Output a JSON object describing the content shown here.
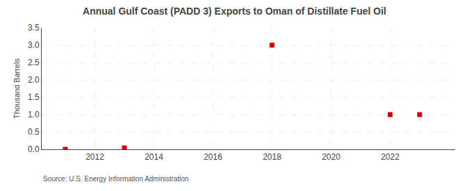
{
  "chart_data": {
    "type": "scatter",
    "title": "Annual Gulf Coast (PADD 3) Exports to Oman of Distillate Fuel Oil",
    "y_label": "Thousand Barrels",
    "annotations": [
      "Source: U.S. Energy Information Administration"
    ],
    "x": [
      2011,
      2013,
      2018,
      2022,
      2023
    ],
    "values": [
      0.0,
      0.04,
      3.0,
      1.0,
      1.0
    ],
    "color": "#cc0000",
    "marker": "square",
    "xlim": [
      2010.2,
      2024.2
    ],
    "ylim": [
      0.0,
      3.5
    ],
    "xticks": [
      2012,
      2014,
      2016,
      2018,
      2020,
      2022
    ],
    "yticks": [
      {
        "value": 0.0,
        "label": "0.0"
      },
      0.5,
      {
        "value": 1.0,
        "label": "1.0"
      },
      1.5,
      {
        "value": 2.0,
        "label": "2.0"
      },
      2.5,
      {
        "value": 3.0,
        "label": "3.0"
      },
      3.5
    ],
    "grid": true
  }
}
